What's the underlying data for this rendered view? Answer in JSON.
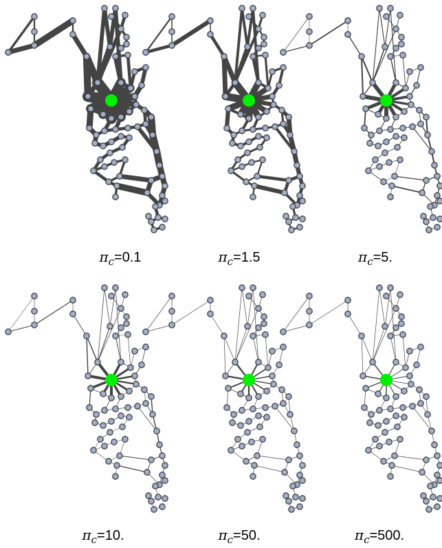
{
  "colors": {
    "background": "#ffffff",
    "edge": "#444444",
    "node_fill": "#a4afc5",
    "node_stroke": "#3d4048",
    "hub": "#00ef00"
  },
  "panels": [
    {
      "symbol": "π",
      "subscript": "c",
      "value": "=0.1",
      "edge_scale": 1.0
    },
    {
      "symbol": "π",
      "subscript": "c",
      "value": "=1.5",
      "edge_scale": 0.82
    },
    {
      "symbol": "π",
      "subscript": "c",
      "value": "=5.",
      "edge_scale": 0.6
    },
    {
      "symbol": "π",
      "subscript": "c",
      "value": "=10.",
      "edge_scale": 0.5
    },
    {
      "symbol": "π",
      "subscript": "c",
      "value": "=50.",
      "edge_scale": 0.38
    },
    {
      "symbol": "π",
      "subscript": "c",
      "value": "=500.",
      "edge_scale": 0.3
    }
  ]
}
